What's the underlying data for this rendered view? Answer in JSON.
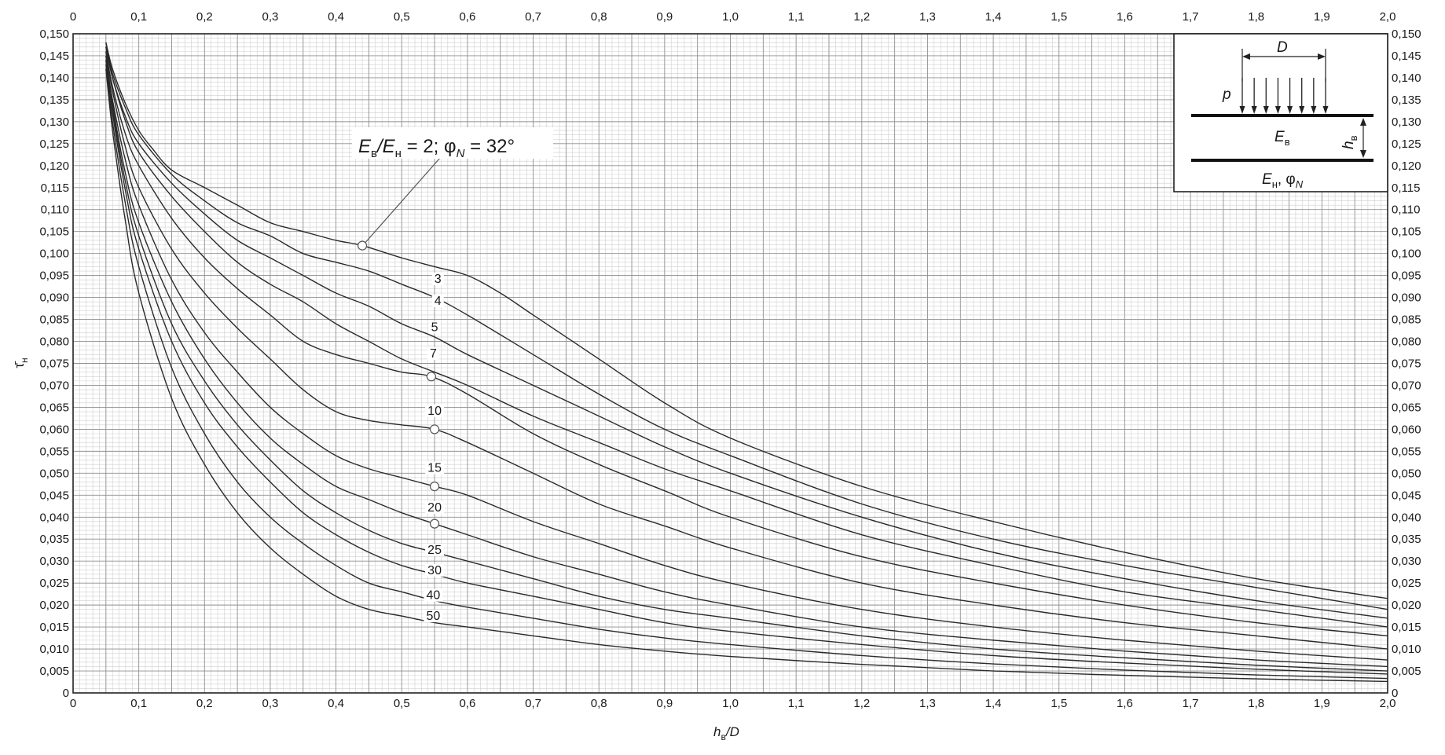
{
  "chart_data": {
    "type": "line",
    "title": "",
    "xlabel": "h",
    "xlabel_sub": "в",
    "xlabel_suffix": "/D",
    "ylabel": "τ̄",
    "ylabel_sub": "н",
    "xlim": [
      0,
      2.0
    ],
    "ylim": [
      0,
      0.15
    ],
    "x_major_step": 0.1,
    "x_minor_step": 0.01,
    "y_major_step": 0.005,
    "y_minor_step": 0.001,
    "grid": true,
    "decimal_separator": ",",
    "annotation": {
      "text_parts": [
        "E",
        "в",
        "/E",
        "н",
        " = 2; φ",
        "N",
        " = 32°"
      ],
      "points_to": [
        0.44,
        0.1018
      ]
    },
    "markers": [
      [
        0.44,
        0.1018
      ],
      [
        0.545,
        0.072
      ],
      [
        0.55,
        0.06
      ],
      [
        0.55,
        0.047
      ],
      [
        0.55,
        0.0385
      ]
    ],
    "series": [
      {
        "name": "2",
        "label_at": null,
        "x": [
          0.05,
          0.06,
          0.08,
          0.1,
          0.12,
          0.15,
          0.2,
          0.25,
          0.3,
          0.35,
          0.4,
          0.44,
          0.5,
          0.55,
          0.6,
          0.65,
          0.7,
          0.8,
          0.9,
          1.0,
          1.2,
          1.4,
          1.6,
          1.8,
          2.0
        ],
        "y": [
          0.148,
          0.142,
          0.134,
          0.128,
          0.124,
          0.119,
          0.115,
          0.111,
          0.107,
          0.105,
          0.103,
          0.1018,
          0.099,
          0.097,
          0.095,
          0.091,
          0.086,
          0.076,
          0.066,
          0.058,
          0.047,
          0.039,
          0.032,
          0.026,
          0.0215
        ]
      },
      {
        "name": "3",
        "label_at": [
          0.555,
          0.0935
        ],
        "x": [
          0.05,
          0.06,
          0.08,
          0.1,
          0.15,
          0.2,
          0.25,
          0.3,
          0.35,
          0.4,
          0.45,
          0.5,
          0.55,
          0.6,
          0.7,
          0.8,
          0.9,
          1.0,
          1.2,
          1.4,
          1.6,
          1.8,
          2.0
        ],
        "y": [
          0.148,
          0.141,
          0.133,
          0.127,
          0.118,
          0.112,
          0.107,
          0.104,
          0.1,
          0.098,
          0.096,
          0.093,
          0.09,
          0.086,
          0.077,
          0.068,
          0.06,
          0.054,
          0.043,
          0.035,
          0.029,
          0.024,
          0.019
        ]
      },
      {
        "name": "4",
        "label_at": [
          0.555,
          0.0885
        ],
        "x": [
          0.05,
          0.06,
          0.08,
          0.1,
          0.15,
          0.2,
          0.25,
          0.3,
          0.35,
          0.4,
          0.45,
          0.5,
          0.55,
          0.6,
          0.7,
          0.8,
          0.9,
          1.0,
          1.2,
          1.4,
          1.6,
          1.8,
          2.0
        ],
        "y": [
          0.147,
          0.14,
          0.131,
          0.125,
          0.116,
          0.109,
          0.103,
          0.099,
          0.095,
          0.091,
          0.088,
          0.084,
          0.081,
          0.077,
          0.07,
          0.063,
          0.056,
          0.05,
          0.04,
          0.032,
          0.026,
          0.021,
          0.017
        ]
      },
      {
        "name": "5",
        "label_at": [
          0.55,
          0.0825
        ],
        "x": [
          0.05,
          0.06,
          0.08,
          0.1,
          0.15,
          0.2,
          0.25,
          0.3,
          0.35,
          0.4,
          0.45,
          0.5,
          0.55,
          0.6,
          0.7,
          0.8,
          0.9,
          1.0,
          1.2,
          1.4,
          1.6,
          1.8,
          2.0
        ],
        "y": [
          0.147,
          0.14,
          0.13,
          0.123,
          0.113,
          0.105,
          0.098,
          0.093,
          0.089,
          0.084,
          0.08,
          0.076,
          0.073,
          0.07,
          0.063,
          0.057,
          0.051,
          0.046,
          0.036,
          0.029,
          0.023,
          0.019,
          0.015
        ]
      },
      {
        "name": "7",
        "label_at": [
          0.548,
          0.0765
        ],
        "x": [
          0.05,
          0.06,
          0.08,
          0.1,
          0.15,
          0.2,
          0.25,
          0.3,
          0.35,
          0.4,
          0.45,
          0.5,
          0.545,
          0.6,
          0.7,
          0.8,
          0.9,
          1.0,
          1.2,
          1.4,
          1.6,
          1.8,
          2.0
        ],
        "y": [
          0.146,
          0.138,
          0.127,
          0.12,
          0.108,
          0.099,
          0.092,
          0.086,
          0.08,
          0.077,
          0.075,
          0.073,
          0.072,
          0.068,
          0.059,
          0.052,
          0.046,
          0.04,
          0.031,
          0.025,
          0.02,
          0.016,
          0.013
        ]
      },
      {
        "name": "10",
        "label_at": [
          0.55,
          0.0635
        ],
        "x": [
          0.05,
          0.06,
          0.08,
          0.1,
          0.15,
          0.2,
          0.25,
          0.3,
          0.35,
          0.4,
          0.45,
          0.5,
          0.55,
          0.6,
          0.7,
          0.8,
          0.9,
          1.0,
          1.2,
          1.4,
          1.6,
          1.8,
          2.0
        ],
        "y": [
          0.146,
          0.137,
          0.124,
          0.115,
          0.101,
          0.091,
          0.083,
          0.076,
          0.069,
          0.064,
          0.062,
          0.061,
          0.06,
          0.057,
          0.05,
          0.043,
          0.038,
          0.033,
          0.025,
          0.02,
          0.016,
          0.013,
          0.01
        ]
      },
      {
        "name": "15",
        "label_at": [
          0.55,
          0.0505
        ],
        "x": [
          0.05,
          0.06,
          0.08,
          0.1,
          0.15,
          0.2,
          0.25,
          0.3,
          0.35,
          0.4,
          0.45,
          0.5,
          0.55,
          0.6,
          0.7,
          0.8,
          0.9,
          1.0,
          1.2,
          1.4,
          1.6,
          1.8,
          2.0
        ],
        "y": [
          0.145,
          0.135,
          0.121,
          0.111,
          0.094,
          0.082,
          0.073,
          0.065,
          0.059,
          0.054,
          0.051,
          0.049,
          0.047,
          0.045,
          0.039,
          0.034,
          0.029,
          0.025,
          0.019,
          0.015,
          0.012,
          0.0095,
          0.0075
        ]
      },
      {
        "name": "20",
        "label_at": [
          0.55,
          0.0415
        ],
        "x": [
          0.05,
          0.06,
          0.08,
          0.1,
          0.15,
          0.2,
          0.25,
          0.3,
          0.35,
          0.4,
          0.45,
          0.5,
          0.55,
          0.6,
          0.7,
          0.8,
          0.9,
          1.0,
          1.2,
          1.4,
          1.6,
          1.8,
          2.0
        ],
        "y": [
          0.145,
          0.134,
          0.118,
          0.107,
          0.089,
          0.076,
          0.066,
          0.058,
          0.052,
          0.047,
          0.044,
          0.041,
          0.0385,
          0.036,
          0.031,
          0.027,
          0.023,
          0.02,
          0.015,
          0.012,
          0.0095,
          0.0075,
          0.006
        ]
      },
      {
        "name": "25",
        "label_at": [
          0.55,
          0.0318
        ],
        "x": [
          0.05,
          0.06,
          0.08,
          0.1,
          0.15,
          0.2,
          0.25,
          0.3,
          0.35,
          0.4,
          0.45,
          0.5,
          0.55,
          0.6,
          0.7,
          0.8,
          0.9,
          1.0,
          1.2,
          1.4,
          1.6,
          1.8,
          2.0
        ],
        "y": [
          0.144,
          0.133,
          0.116,
          0.104,
          0.084,
          0.071,
          0.061,
          0.053,
          0.046,
          0.041,
          0.037,
          0.034,
          0.032,
          0.03,
          0.026,
          0.022,
          0.019,
          0.017,
          0.013,
          0.01,
          0.008,
          0.0063,
          0.005
        ]
      },
      {
        "name": "30",
        "label_at": [
          0.55,
          0.0272
        ],
        "x": [
          0.05,
          0.06,
          0.08,
          0.1,
          0.15,
          0.2,
          0.25,
          0.3,
          0.35,
          0.4,
          0.45,
          0.5,
          0.55,
          0.6,
          0.7,
          0.8,
          0.9,
          1.0,
          1.2,
          1.4,
          1.6,
          1.8,
          2.0
        ],
        "y": [
          0.144,
          0.132,
          0.114,
          0.101,
          0.08,
          0.066,
          0.056,
          0.048,
          0.041,
          0.036,
          0.032,
          0.029,
          0.027,
          0.025,
          0.022,
          0.019,
          0.016,
          0.014,
          0.011,
          0.0085,
          0.0068,
          0.0054,
          0.0043
        ]
      },
      {
        "name": "40",
        "label_at": [
          0.548,
          0.0215
        ],
        "x": [
          0.05,
          0.06,
          0.08,
          0.1,
          0.15,
          0.2,
          0.25,
          0.3,
          0.35,
          0.4,
          0.45,
          0.5,
          0.55,
          0.6,
          0.7,
          0.8,
          0.9,
          1.0,
          1.2,
          1.4,
          1.6,
          1.8,
          2.0
        ],
        "y": [
          0.143,
          0.13,
          0.111,
          0.097,
          0.074,
          0.059,
          0.048,
          0.04,
          0.034,
          0.029,
          0.025,
          0.023,
          0.021,
          0.0195,
          0.017,
          0.0145,
          0.0125,
          0.011,
          0.0085,
          0.0066,
          0.0052,
          0.0041,
          0.0033
        ]
      },
      {
        "name": "50",
        "label_at": [
          0.548,
          0.0168
        ],
        "x": [
          0.05,
          0.06,
          0.08,
          0.1,
          0.15,
          0.2,
          0.25,
          0.3,
          0.35,
          0.4,
          0.45,
          0.5,
          0.55,
          0.6,
          0.7,
          0.8,
          0.9,
          1.0,
          1.2,
          1.4,
          1.6,
          1.8,
          2.0
        ],
        "y": [
          0.142,
          0.128,
          0.107,
          0.091,
          0.067,
          0.052,
          0.041,
          0.033,
          0.027,
          0.022,
          0.019,
          0.0175,
          0.016,
          0.015,
          0.013,
          0.011,
          0.0095,
          0.0083,
          0.0065,
          0.005,
          0.004,
          0.0032,
          0.0026
        ]
      }
    ]
  },
  "inset": {
    "D": "D",
    "p": "p",
    "E_upper": "E",
    "E_upper_sub": "в",
    "h": "h",
    "h_sub": "в",
    "E_lower": "E",
    "E_lower_sub": "н",
    "phi": ", φ",
    "phi_sub": "N"
  }
}
